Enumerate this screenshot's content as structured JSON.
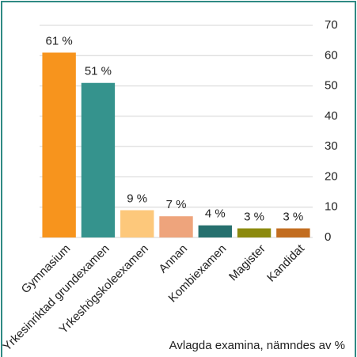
{
  "chart_data": {
    "type": "bar",
    "categories": [
      "Gymnasium",
      "Yrkesinriktad grundexamen",
      "Yrkeshögskoleexamen",
      "Annan",
      "Kombiexamen",
      "Magister",
      "Kandidat"
    ],
    "values": [
      61,
      51,
      9,
      7,
      4,
      3,
      3
    ],
    "value_labels": [
      "61 %",
      "51 %",
      "9 %",
      "7 %",
      "4 %",
      "3 %",
      "3 %"
    ],
    "colors": [
      "#f7941d",
      "#35938d",
      "#fdc87b",
      "#eea47c",
      "#26706e",
      "#8c8a0e",
      "#c26d20"
    ],
    "ylim": [
      0,
      70
    ],
    "yticks": [
      0,
      10,
      20,
      30,
      40,
      50,
      60,
      70
    ],
    "grid": true,
    "y_axis_side": "right",
    "caption": "Avlagda examina, nämndes av %"
  }
}
